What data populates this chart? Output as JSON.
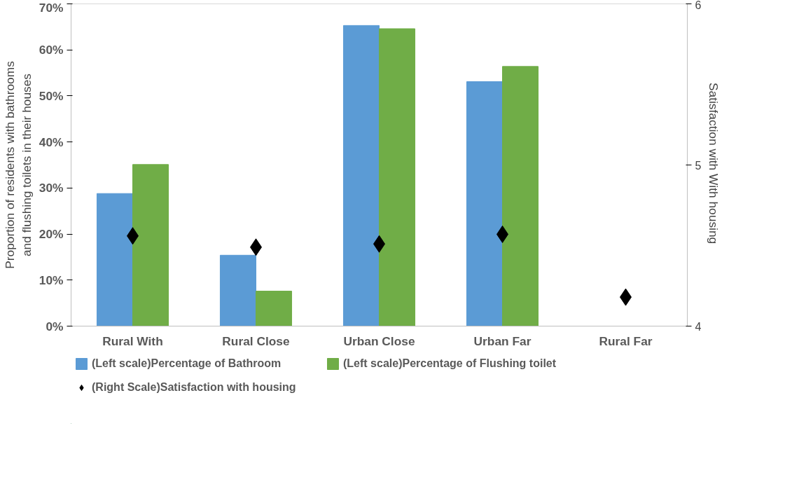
{
  "chart_data": {
    "type": "bar",
    "categories": [
      "Rural With",
      "Rural Close",
      "Urban Close",
      "Urban Far",
      "Rural Far"
    ],
    "ylabel": "Proportion of residents with bathrooms\nand flushing toilets in their houses",
    "y2label": "Satisfaction with  With housing",
    "ylim": [
      0,
      0.7
    ],
    "yticks": [
      {
        "value": 0,
        "label": "0%"
      },
      {
        "value": 0.1,
        "label": "10%"
      },
      {
        "value": 0.2,
        "label": "20%"
      },
      {
        "value": 0.3,
        "label": "30%"
      },
      {
        "value": 0.4,
        "label": "40%"
      },
      {
        "value": 0.5,
        "label": "50%"
      },
      {
        "value": 0.6,
        "label": "60%"
      },
      {
        "value": 0.7,
        "label": "70%"
      }
    ],
    "y2lim": [
      4,
      6
    ],
    "y2ticks": [
      4,
      5,
      6
    ],
    "series": [
      {
        "name": "(Left scale)Percentage of Bathroom",
        "color": "#5b9bd5",
        "values": [
          0.288,
          0.154,
          0.653,
          0.531,
          null
        ]
      },
      {
        "name": "(Left scale)Percentage of Flushing toilet",
        "color": "#70ad47",
        "values": [
          0.351,
          0.076,
          0.646,
          0.564,
          null
        ]
      },
      {
        "name": "(Right Scale)Satisfaction with housing",
        "type": "scatter",
        "axis": "y2",
        "marker": "diamond",
        "color": "#000000",
        "values": [
          4.56,
          4.49,
          4.51,
          4.57,
          4.18
        ]
      }
    ],
    "grid": false,
    "legend": "bottom"
  }
}
